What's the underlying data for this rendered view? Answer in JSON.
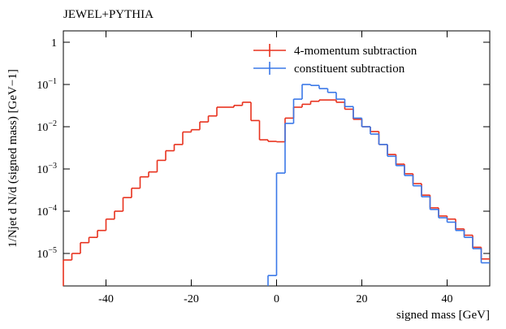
{
  "chart_data": {
    "type": "histogram",
    "title": "JEWEL+PYTHIA",
    "x_label": "signed mass [GeV]",
    "y_label": "1/Njet d N/d (signed mass) [GeV−1]",
    "bins": [
      -50,
      -48,
      -46,
      -44,
      -42,
      -40,
      -38,
      -36,
      -34,
      -32,
      -30,
      -28,
      -26,
      -24,
      -22,
      -20,
      -18,
      -16,
      -14,
      -12,
      -10,
      -8,
      -6,
      -4,
      -2,
      0,
      2,
      4,
      6,
      8,
      10,
      12,
      14,
      16,
      18,
      20,
      22,
      24,
      26,
      28,
      30,
      32,
      34,
      36,
      38,
      40,
      42,
      44,
      46,
      48,
      50
    ],
    "series": [
      {
        "name": "4-momentum subtraction",
        "color": "#e8321e",
        "values": [
          7e-06,
          1e-05,
          1.8e-05,
          2.4e-05,
          3.5e-05,
          6.5e-05,
          0.0001,
          0.00021,
          0.00035,
          0.00065,
          0.00085,
          0.0016,
          0.0027,
          0.0038,
          0.0075,
          0.0085,
          0.013,
          0.018,
          0.029,
          0.029,
          0.032,
          0.038,
          0.014,
          0.0049,
          0.0045,
          0.0044,
          0.016,
          0.029,
          0.034,
          0.04,
          0.043,
          0.043,
          0.038,
          0.026,
          0.015,
          0.01,
          0.0077,
          0.0038,
          0.0022,
          0.0013,
          0.00077,
          0.00045,
          0.00024,
          0.00012,
          7.7e-05,
          6.5e-05,
          3.8e-05,
          2.7e-05,
          1.4e-05,
          7.4e-06
        ]
      },
      {
        "name": "constituent subtraction",
        "color": "#3a78e8",
        "values": [
          null,
          null,
          null,
          null,
          null,
          null,
          null,
          null,
          null,
          null,
          null,
          null,
          null,
          null,
          null,
          null,
          null,
          null,
          null,
          null,
          null,
          null,
          null,
          null,
          3e-06,
          0.0008,
          0.012,
          0.045,
          0.1,
          0.095,
          0.08,
          0.065,
          0.045,
          0.03,
          0.016,
          0.01,
          0.0067,
          0.0038,
          0.002,
          0.0012,
          0.0007,
          0.0004,
          0.00022,
          0.00011,
          7e-05,
          5.5e-05,
          3.5e-05,
          2.4e-05,
          1.3e-05,
          6e-06
        ]
      }
    ],
    "xlim": [
      -50,
      50
    ],
    "xticks": [
      -40,
      -20,
      0,
      20,
      40
    ],
    "ylim": [
      1.7e-06,
      1.86
    ],
    "yscale": "log",
    "yticks": [
      1,
      {
        "value": 0.1,
        "label": "10−1"
      },
      {
        "value": 0.01,
        "label": "10−2"
      },
      {
        "value": 0.001,
        "label": "10−3"
      },
      {
        "value": 0.0001,
        "label": "10−4"
      },
      {
        "value": 1e-05,
        "label": "10−5"
      }
    ],
    "legend": "upper right"
  }
}
